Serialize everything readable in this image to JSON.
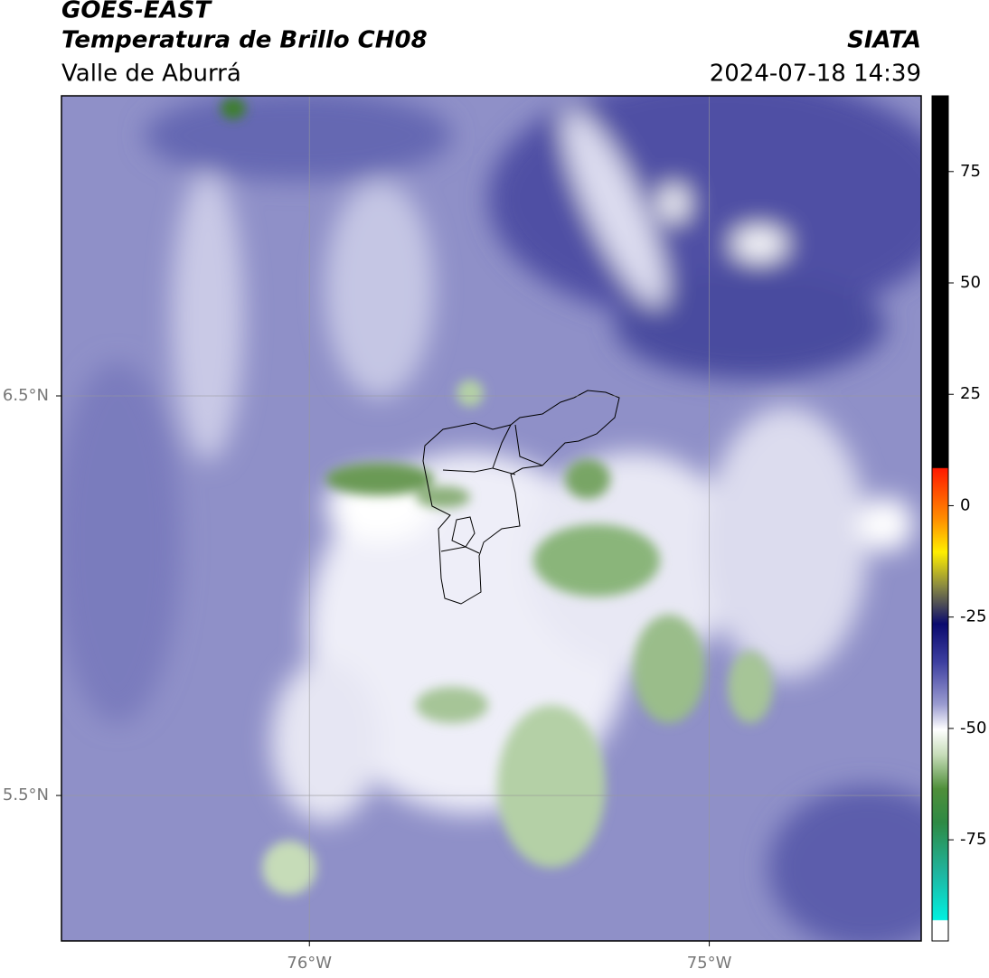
{
  "header": {
    "title": "GOES-EAST",
    "subtitle": "Temperatura de Brillo CH08",
    "region": "Valle de Aburrá",
    "source": "SIATA",
    "datetime": "2024-07-18 14:39"
  },
  "map": {
    "xlim": [
      -76.62,
      -74.47
    ],
    "ylim": [
      5.136,
      7.251
    ],
    "xticks": [
      {
        "value": -76,
        "label": "76°W"
      },
      {
        "value": -75,
        "label": "75°W"
      }
    ],
    "yticks": [
      {
        "value": 6.5,
        "label": "6.5°N"
      },
      {
        "value": 5.5,
        "label": "5.5°N"
      }
    ],
    "grid": true
  },
  "colorbar": {
    "clim": [
      -97.7,
      92
    ],
    "ticks": [
      75,
      50,
      25,
      0,
      -25,
      -50,
      -75
    ]
  }
}
